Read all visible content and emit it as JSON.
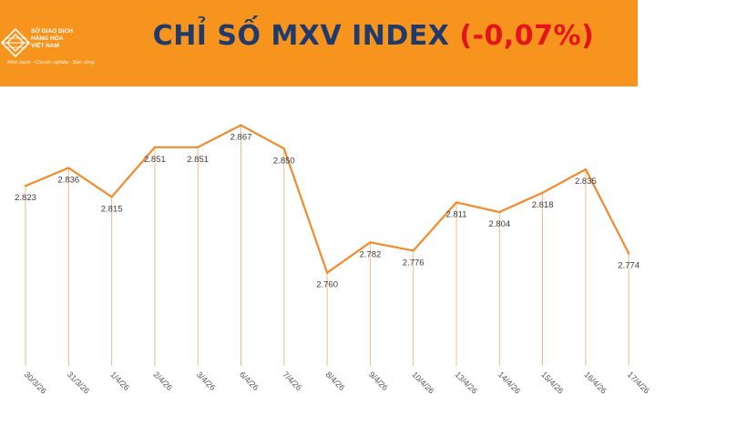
{
  "header": {
    "title_main": "CHỈ SỐ MXV INDEX",
    "title_change": "(-0,07%)",
    "background_color": "#F7941D",
    "title_color": "#1F3A6B",
    "change_color": "#E3141B"
  },
  "logo": {
    "line1": "SỞ GIAO DỊCH",
    "line2": "HÀNG HÓA",
    "line3": "VIỆT NAM",
    "tagline": "Minh bạch - Chuyên nghiệp - Bền vững",
    "icon": "mxv-logo-icon"
  },
  "chart_data": {
    "type": "line",
    "title": "CHỈ SỐ MXV INDEX (-0,07%)",
    "categories": [
      "30/3/26",
      "31/3/26",
      "1/4/26",
      "2/4/26",
      "3/4/26",
      "6/4/26",
      "7/4/26",
      "8/4/26",
      "9/4/26",
      "10/4/26",
      "13/4/26",
      "14/4/26",
      "15/4/26",
      "16/4/26",
      "17/4/26"
    ],
    "series": [
      {
        "values": [
          2823,
          2836,
          2815,
          2851,
          2851,
          2867,
          2850,
          2760,
          2782,
          2776,
          2811,
          2804,
          2818,
          2835,
          2774
        ],
        "labels": [
          "2.823",
          "2.836",
          "2.815",
          "2.851",
          "2.851",
          "2.867",
          "2.850",
          "2.760",
          "2.782",
          "2.776",
          "2.811",
          "2.804",
          "2.818",
          "2.835",
          "2.774"
        ],
        "color": "#F08A2C"
      }
    ],
    "xlabel": "",
    "ylabel": "",
    "ylim": [
      2740,
      2870
    ],
    "grid": false,
    "legend": "none",
    "drop_lines": true
  }
}
